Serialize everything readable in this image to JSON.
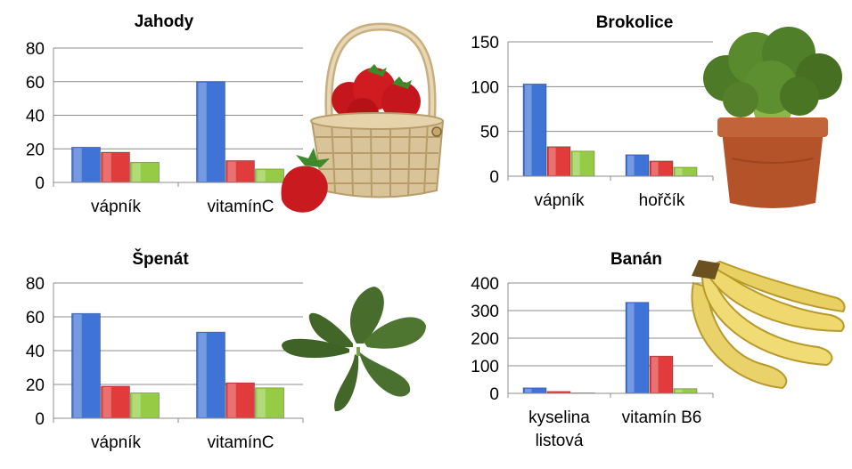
{
  "chart_data": [
    {
      "type": "bar",
      "title": "Jahody",
      "categories": [
        "vápník",
        "vitamínC"
      ],
      "series": [
        {
          "values": [
            21,
            60
          ],
          "color": "#3f74d6"
        },
        {
          "values": [
            18,
            13
          ],
          "color": "#e23b3b"
        },
        {
          "values": [
            12,
            8
          ],
          "color": "#96cc45"
        }
      ],
      "ylim": [
        0,
        80
      ],
      "yticks": [
        "0",
        "20",
        "40",
        "60",
        "80"
      ],
      "grid": true,
      "image": "strawberry-basket"
    },
    {
      "type": "bar",
      "title": "Brokolice",
      "categories": [
        "vápník",
        "hořčík"
      ],
      "series": [
        {
          "values": [
            103,
            24
          ],
          "color": "#3f74d6"
        },
        {
          "values": [
            33,
            17
          ],
          "color": "#e23b3b"
        },
        {
          "values": [
            28,
            10
          ],
          "color": "#96cc45"
        }
      ],
      "ylim": [
        0,
        150
      ],
      "yticks": [
        "0",
        "50",
        "100",
        "150"
      ],
      "grid": true,
      "image": "broccoli-pot"
    },
    {
      "type": "bar",
      "title": "Špenát",
      "categories": [
        "vápník",
        "vitamínC"
      ],
      "series": [
        {
          "values": [
            62,
            51
          ],
          "color": "#3f74d6"
        },
        {
          "values": [
            19,
            21
          ],
          "color": "#e23b3b"
        },
        {
          "values": [
            15,
            18
          ],
          "color": "#96cc45"
        }
      ],
      "ylim": [
        0,
        80
      ],
      "yticks": [
        "0",
        "20",
        "40",
        "60",
        "80"
      ],
      "grid": true,
      "image": "spinach-leaves"
    },
    {
      "type": "bar",
      "title": "Banán",
      "categories": [
        "kyselina listová",
        "vitamín B6"
      ],
      "category_lines": [
        [
          "kyselina",
          "listová"
        ],
        [
          "vitamín B6"
        ]
      ],
      "series": [
        {
          "values": [
            20,
            330
          ],
          "color": "#3f74d6"
        },
        {
          "values": [
            7,
            135
          ],
          "color": "#e23b3b"
        },
        {
          "values": [
            2,
            17
          ],
          "color": "#96cc45"
        }
      ],
      "ylim": [
        0,
        400
      ],
      "yticks": [
        "0",
        "100",
        "200",
        "300",
        "400"
      ],
      "grid": true,
      "image": "banana-bunch"
    }
  ]
}
